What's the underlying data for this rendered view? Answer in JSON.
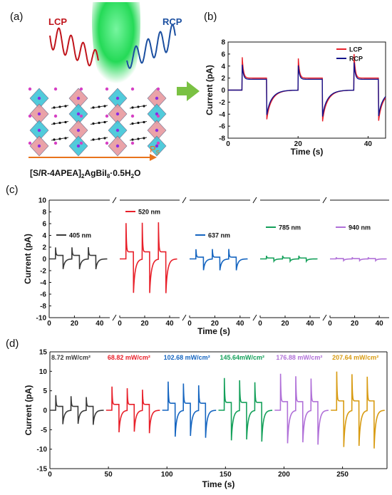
{
  "panel_labels": {
    "a": "(a)",
    "b": "(b)",
    "c": "(c)",
    "d": "(d)"
  },
  "schematic": {
    "lcp_label": "LCP",
    "rcp_label": "RCP",
    "ps_label": "P",
    "ps_sub": "S",
    "formula_parts": [
      "[S/R-4APEA]",
      "2",
      "AgBiI",
      "8",
      "·0.5H",
      "2",
      "O"
    ],
    "colors": {
      "lcp": "#c0141b",
      "rcp": "#1b4fa0",
      "beam": "#19d84e",
      "arrow": "#7ac143",
      "ps_arrow": "#e8731b",
      "octa_cyan": "#3fc6d8",
      "octa_pink": "#e89a9f"
    }
  },
  "chart_data": [
    {
      "id": "b",
      "type": "line",
      "xlabel": "Time (s)",
      "ylabel": "Current (pA)",
      "xlim": [
        0,
        45
      ],
      "ylim": [
        -8,
        8
      ],
      "xticks": [
        0,
        20,
        40
      ],
      "yticks": [
        -8,
        -6,
        -4,
        -2,
        0,
        2,
        4,
        6,
        8
      ],
      "light_on_s": [
        4,
        20,
        36
      ],
      "light_off_s": [
        11,
        27,
        43
      ],
      "legend_position": "top-right",
      "series": [
        {
          "name": "LCP",
          "color": "#e8202a",
          "peak_on": 6.0,
          "peak_off": -5.2,
          "steady_on": 2.0
        },
        {
          "name": "RCP",
          "color": "#14148c",
          "peak_on": 4.6,
          "peak_off": -4.4,
          "steady_on": 1.8
        }
      ]
    },
    {
      "id": "c",
      "type": "line",
      "xlabel": "Time (s)",
      "ylabel": "Current (pA)",
      "ylim": [
        -10,
        10
      ],
      "yticks": [
        -10,
        -8,
        -6,
        -4,
        -2,
        0,
        2,
        4,
        6,
        8,
        10
      ],
      "xlim": [
        0,
        48
      ],
      "xticks": [
        0,
        20,
        40
      ],
      "light_on_s": [
        5,
        18,
        31
      ],
      "light_off_s": [
        11,
        24,
        37
      ],
      "series": [
        {
          "name": "405 nm",
          "color": "#3a3a3a",
          "peak_on": 2.2,
          "peak_off": -1.8,
          "steady_on": 0.6
        },
        {
          "name": "520 nm",
          "color": "#e8202a",
          "peak_on": 7.0,
          "peak_off": -6.0,
          "steady_on": 1.2
        },
        {
          "name": "637 nm",
          "color": "#1565c0",
          "peak_on": 1.9,
          "peak_off": -2.0,
          "steady_on": 0.3
        },
        {
          "name": "785 nm",
          "color": "#14a05a",
          "peak_on": 0.6,
          "peak_off": -0.4,
          "steady_on": 0.15
        },
        {
          "name": "940 nm",
          "color": "#b070d8",
          "peak_on": 0.3,
          "peak_off": -0.3,
          "steady_on": 0.05
        }
      ]
    },
    {
      "id": "d",
      "type": "line",
      "xlabel": "Time (s)",
      "ylabel": "Current (pA)",
      "xlim": [
        0,
        288
      ],
      "ylim": [
        -15,
        15
      ],
      "xticks": [
        0,
        50,
        100,
        150,
        200,
        250
      ],
      "yticks": [
        -15,
        -10,
        -5,
        0,
        5,
        10,
        15
      ],
      "segment_starts_s": [
        0,
        48,
        96,
        144,
        192,
        240
      ],
      "segment_length_s": 48,
      "light_on_s": [
        5,
        18,
        31
      ],
      "light_off_s": [
        11,
        24,
        37
      ],
      "series": [
        {
          "name": "8.72 mW/cm²",
          "color": "#3a3a3a",
          "peak_on": 4.2,
          "peak_off": -3.8,
          "steady_on": 1.0
        },
        {
          "name": "68.82 mW/cm²",
          "color": "#e8202a",
          "peak_on": 6.6,
          "peak_off": -6.0,
          "steady_on": 1.5
        },
        {
          "name": "102.68 mW/cm²",
          "color": "#1565c0",
          "peak_on": 8.0,
          "peak_off": -7.2,
          "steady_on": 1.8
        },
        {
          "name": "145.64mW/cm²",
          "color": "#14a05a",
          "peak_on": 9.0,
          "peak_off": -8.2,
          "steady_on": 2.0
        },
        {
          "name": "176.88 mW/cm²",
          "color": "#b070d8",
          "peak_on": 10.2,
          "peak_off": -9.0,
          "steady_on": 2.2
        },
        {
          "name": "207.64 mW/cm²",
          "color": "#d89b12",
          "peak_on": 10.8,
          "peak_off": -10.0,
          "steady_on": 2.4
        }
      ]
    }
  ]
}
